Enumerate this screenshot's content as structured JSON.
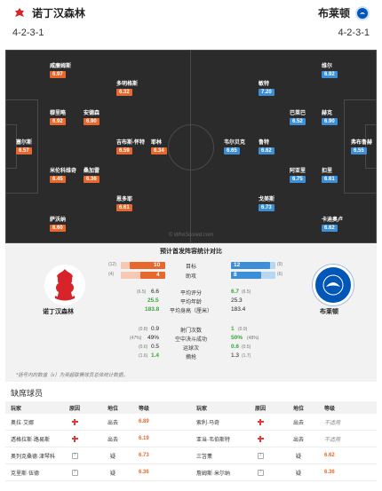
{
  "header": {
    "home_name": "诺丁汉森林",
    "away_name": "布莱顿",
    "home_formation": "4-2-3-1",
    "away_formation": "4-2-3-1"
  },
  "pitch": {
    "watermark": "© WhoScored.com",
    "home_players": [
      {
        "name": "威廉姆斯",
        "rating": "6.97"
      },
      {
        "name": "多明格斯",
        "rating": "6.32"
      },
      {
        "name": "穆里略",
        "rating": "6.92"
      },
      {
        "name": "安德森",
        "rating": "6.90"
      },
      {
        "name": "塞尔斯",
        "rating": "6.57"
      },
      {
        "name": "吉布斯-怀特",
        "rating": "6.59"
      },
      {
        "name": "耶林",
        "rating": "6.34"
      },
      {
        "name": "米伦科维奇",
        "rating": "6.45"
      },
      {
        "name": "桑加雷",
        "rating": "6.36"
      },
      {
        "name": "恩多耶",
        "rating": "6.61"
      },
      {
        "name": "萨沃纳",
        "rating": "6.60"
      }
    ],
    "away_players": [
      {
        "name": "维尔",
        "rating": "6.92"
      },
      {
        "name": "敏特",
        "rating": "7.20"
      },
      {
        "name": "巴莱巴",
        "rating": "6.52"
      },
      {
        "name": "赫克",
        "rating": "6.90"
      },
      {
        "name": "韦尔贝克",
        "rating": "6.65"
      },
      {
        "name": "鲁特",
        "rating": "6.62"
      },
      {
        "name": "弗布鲁赫",
        "rating": "6.55"
      },
      {
        "name": "阿亚里",
        "rating": "6.75"
      },
      {
        "name": "扣里",
        "rating": "6.61"
      },
      {
        "name": "戈美斯",
        "rating": "6.73"
      },
      {
        "name": "卡迪奥卢",
        "rating": "6.62"
      }
    ]
  },
  "stats": {
    "title": "预计首发阵容统计对比",
    "home_name": "诺丁汉森林",
    "away_name": "布莱顿",
    "bars": [
      {
        "label": "目标",
        "home": "10",
        "away": "12",
        "home_avg": "(12)",
        "away_avg": "(9)",
        "home_frac": 0.45,
        "away_frac": 0.55
      },
      {
        "label": "助攻",
        "home": "4",
        "away": "8",
        "home_avg": "(4)",
        "away_avg": "(6)",
        "home_frac": 0.33,
        "away_frac": 0.67
      }
    ],
    "rows1": [
      {
        "label": "平均评分",
        "home": "6.6",
        "home_avg": "(6.5)",
        "away": "6.7",
        "away_avg": "(6.5)",
        "home_green": false,
        "away_green": true
      },
      {
        "label": "平均年龄",
        "home": "25.5",
        "home_avg": "",
        "away": "25.3",
        "away_avg": "",
        "home_green": true,
        "away_green": false
      },
      {
        "label": "平均身高（厘米）",
        "home": "183.8",
        "home_avg": "",
        "away": "183.4",
        "away_avg": "",
        "home_green": true,
        "away_green": false
      }
    ],
    "rows2": [
      {
        "label": "射门次数",
        "home": "0.9",
        "home_avg": "(0.8)",
        "away": "1",
        "away_avg": "(0.9)",
        "home_green": false,
        "away_green": true
      },
      {
        "label": "空中决斗成功",
        "home": "49%",
        "home_avg": "(47%)",
        "away": "50%",
        "away_avg": "(48%)",
        "home_green": false,
        "away_green": true
      },
      {
        "label": "运球次",
        "home": "0.5",
        "home_avg": "(0.6)",
        "away": "0.6",
        "away_avg": "(0.5)",
        "home_green": false,
        "away_green": true
      },
      {
        "label": "摘抢",
        "home": "1.4",
        "home_avg": "(1.6)",
        "away": "1.3",
        "away_avg": "(1.7)",
        "home_green": true,
        "away_green": false
      }
    ],
    "note": "*括号内的数值（x）为英超联赛球员总体统计数据。"
  },
  "absent": {
    "title": "缺席球员",
    "headers": {
      "player": "玩家",
      "reason": "原因",
      "position": "地位",
      "rating": "等级"
    },
    "rows": [
      {
        "home_player": "奥拉·艾娜",
        "home_reason": "injury",
        "home_pos": "出去",
        "home_rating": "6.89",
        "away_player": "索利·马奇",
        "away_reason": "injury",
        "away_pos": "出去",
        "away_rating": "不适用"
      },
      {
        "home_player": "透格拉斯·路易斯",
        "home_reason": "injury",
        "home_pos": "出去",
        "home_rating": "6.19",
        "away_player": "亚当·韦伯斯特",
        "away_reason": "injury",
        "away_pos": "出去",
        "away_rating": "不适用"
      },
      {
        "home_player": "奥列克桑德·津琴科",
        "home_reason": "doubt",
        "home_pos": "疑",
        "home_rating": "6.73",
        "away_player": "三笘薰",
        "away_reason": "doubt",
        "away_pos": "疑",
        "away_rating": "6.62"
      },
      {
        "home_player": "克里斯·伍德",
        "home_reason": "doubt",
        "home_pos": "疑",
        "home_rating": "6.36",
        "away_player": "詹姆斯·米尔纳",
        "away_reason": "doubt",
        "away_pos": "疑",
        "away_rating": "6.36"
      }
    ]
  }
}
